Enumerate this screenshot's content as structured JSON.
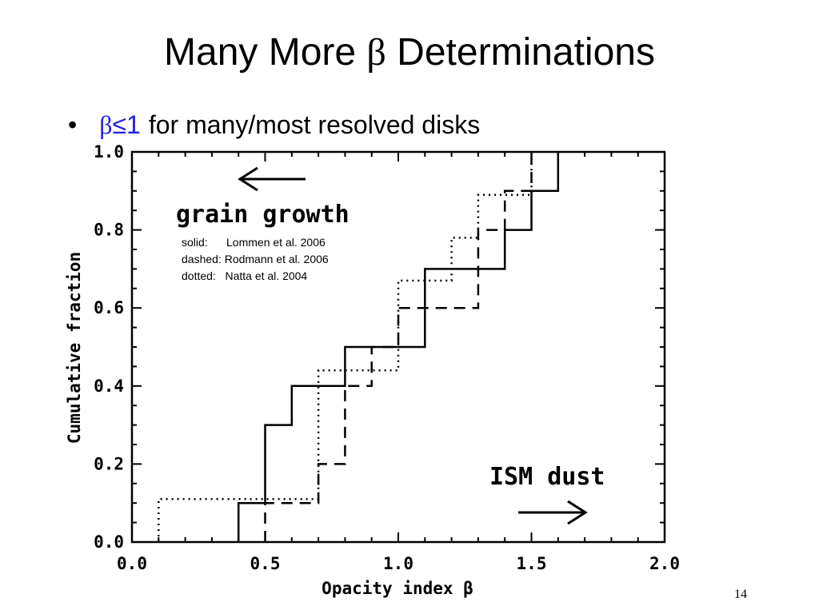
{
  "slide": {
    "title_prefix": "Many More ",
    "title_symbol": "β",
    "title_suffix": " Determinations",
    "bullet_glyph": "•",
    "bullet_highlight_symbol": "β",
    "bullet_highlight_rest": "≤1",
    "bullet_text": "for many/most resolved disks",
    "page_number": "14",
    "highlight_color": "#2222dd"
  },
  "chart_data": {
    "type": "line",
    "title": "",
    "xlabel": "Opacity index β",
    "ylabel": "Cumulative fraction",
    "xlim": [
      0.0,
      2.0
    ],
    "ylim": [
      0.0,
      1.0
    ],
    "x_ticks": [
      "0.0",
      "0.5",
      "1.0",
      "1.5",
      "2.0"
    ],
    "y_ticks": [
      "0.0",
      "0.2",
      "0.4",
      "0.6",
      "0.8",
      "1.0"
    ],
    "grid": false,
    "annotations": [
      {
        "text": "grain growth",
        "arrow": "left"
      },
      {
        "text": "ISM dust",
        "arrow": "right"
      }
    ],
    "legend": [
      {
        "style": "solid",
        "label": "solid:      Lommen et al. 2006"
      },
      {
        "style": "dashed",
        "label": "dashed: Rodmann et al. 2006"
      },
      {
        "style": "dotted",
        "label": "dotted:   Natta et al. 2004"
      }
    ],
    "series": [
      {
        "style": "solid",
        "x": [
          0.4,
          0.4,
          0.5,
          0.5,
          0.6,
          0.6,
          0.8,
          0.8,
          1.1,
          1.1,
          1.4,
          1.4,
          1.5,
          1.5,
          1.6,
          1.6
        ],
        "y": [
          0.0,
          0.1,
          0.1,
          0.3,
          0.3,
          0.4,
          0.4,
          0.5,
          0.5,
          0.7,
          0.7,
          0.8,
          0.8,
          0.9,
          0.9,
          1.0
        ]
      },
      {
        "style": "dashed",
        "x": [
          0.5,
          0.5,
          0.7,
          0.7,
          0.8,
          0.8,
          0.9,
          0.9,
          1.0,
          1.0,
          1.3,
          1.3,
          1.4,
          1.4,
          1.5,
          1.5
        ],
        "y": [
          0.0,
          0.1,
          0.1,
          0.2,
          0.2,
          0.4,
          0.4,
          0.5,
          0.5,
          0.6,
          0.6,
          0.8,
          0.8,
          0.9,
          0.9,
          1.0
        ]
      },
      {
        "style": "dotted",
        "x": [
          0.1,
          0.1,
          0.7,
          0.7,
          1.0,
          1.0,
          1.2,
          1.2,
          1.3,
          1.3,
          1.5,
          1.5
        ],
        "y": [
          0.0,
          0.11,
          0.11,
          0.44,
          0.44,
          0.67,
          0.67,
          0.78,
          0.78,
          0.89,
          0.89,
          1.0
        ]
      }
    ]
  }
}
